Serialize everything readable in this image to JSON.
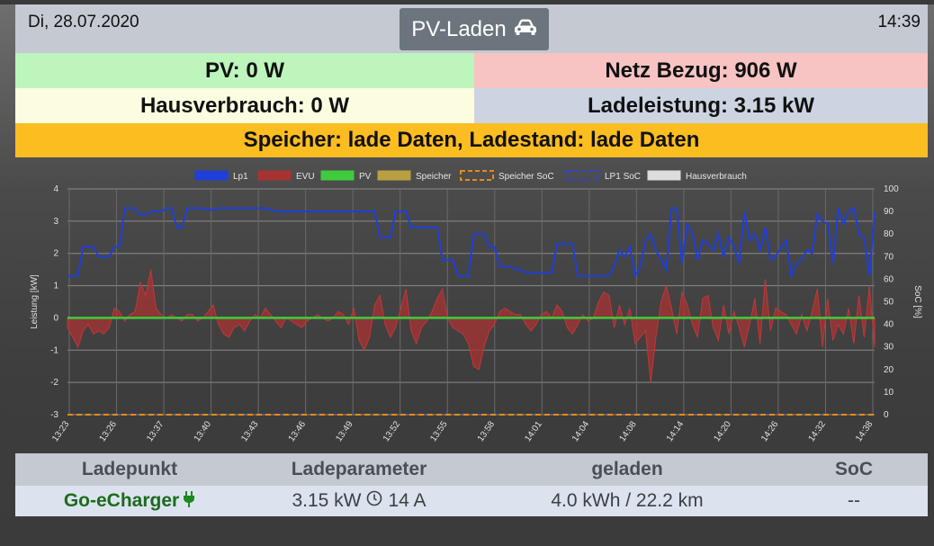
{
  "header": {
    "date": "Di, 28.07.2020",
    "time": "14:39",
    "mode_label": "PV-Laden",
    "mode_icon": "car-icon"
  },
  "status": {
    "pv": "PV: 0 W",
    "netz": "Netz Bezug: 906 W",
    "hausverbrauch": "Hausverbrauch: 0 W",
    "ladeleistung": "Ladeleistung: 3.15 kW",
    "speicher": "Speicher: lade Daten, Ladestand: lade Daten"
  },
  "colors": {
    "pv_bg": "#bdf5bd",
    "netz_bg": "#f7c3c3",
    "haus_bg": "#fcfce0",
    "ladel_bg": "#cdd4e1",
    "speicher_bg": "#fcbd20",
    "lp1": "#1f3fd8",
    "evu": "#a83232",
    "pv": "#3ecc3e",
    "speicher": "#b8a040",
    "speicher_soc": "#e88a1a",
    "lp1_soc": "#3344cc",
    "hausverbrauch": "#dddddd"
  },
  "chart_data": {
    "type": "line",
    "ylabel": "Leistung [kW]",
    "y2label": "SoC [%]",
    "ylim": [
      -3,
      4
    ],
    "y2lim": [
      0,
      100
    ],
    "yticks": [
      "4",
      "3",
      "2",
      "1",
      "0",
      "-1",
      "-2",
      "-3"
    ],
    "y2ticks": [
      "100",
      "90",
      "80",
      "70",
      "60",
      "50",
      "40",
      "30",
      "20",
      "10",
      "0"
    ],
    "x_tick_labels": [
      "13:23",
      "13:26",
      "13:37",
      "13:40",
      "13:43",
      "13:46",
      "13:49",
      "13:52",
      "13:55",
      "13:58",
      "14:01",
      "14:04",
      "14:08",
      "14:14",
      "14:20",
      "14:26",
      "14:32",
      "14:38"
    ],
    "grid": true,
    "legend_position": "top",
    "legend": [
      {
        "name": "Lp1",
        "color": "#1f3fd8",
        "style": "fill"
      },
      {
        "name": "EVU",
        "color": "#a83232",
        "style": "fill"
      },
      {
        "name": "PV",
        "color": "#3ecc3e",
        "style": "fill"
      },
      {
        "name": "Speicher",
        "color": "#b8a040",
        "style": "fill"
      },
      {
        "name": "Speicher SoC",
        "color": "#e88a1a",
        "style": "dash"
      },
      {
        "name": "LP1 SoC",
        "color": "#3344cc",
        "style": "dash"
      },
      {
        "name": "Hausverbrauch",
        "color": "#dddddd",
        "style": "fill"
      }
    ],
    "series": [
      {
        "name": "Lp1",
        "values": [
          1.3,
          1.3,
          1.3,
          2.2,
          2.2,
          2.2,
          1.9,
          1.9,
          1.9,
          2.2,
          2.2,
          3.4,
          3.4,
          3.4,
          3.2,
          3.2,
          3.3,
          3.3,
          3.3,
          3.4,
          3.4,
          2.8,
          2.8,
          3.4,
          3.4,
          3.4,
          3.4,
          3.35,
          3.35,
          3.4,
          3.4,
          3.4,
          3.4,
          3.4,
          3.4,
          3.4,
          3.4,
          3.4,
          3.4,
          3.35,
          3.3,
          3.3,
          3.3,
          3.3,
          3.3,
          3.3,
          3.3,
          3.3,
          3.3,
          3.3,
          3.3,
          3.3,
          3.3,
          3.3,
          3.3,
          3.3,
          3.3,
          3.3,
          3.3,
          3.3,
          2.5,
          2.5,
          2.5,
          3.3,
          3.3,
          3.3,
          2.8,
          2.8,
          2.8,
          2.8,
          2.8,
          2.8,
          1.8,
          1.8,
          1.8,
          1.3,
          1.3,
          1.3,
          2.6,
          2.6,
          2.6,
          2.2,
          2.2,
          1.6,
          1.6,
          1.6,
          1.5,
          1.5,
          1.4,
          1.4,
          1.4,
          1.4,
          1.4,
          1.4,
          2.3,
          2.3,
          2.3,
          2.3,
          1.3,
          1.3,
          1.3,
          1.3,
          1.3,
          1.3,
          1.3,
          1.6,
          2.1,
          1.9,
          2.2,
          1.3,
          1.6,
          2.4,
          2.6,
          2.1,
          1.8,
          1.5,
          3.4,
          3.4,
          1.7,
          2.9,
          2.6,
          1.8,
          2.4,
          2.3,
          2.1,
          2.6,
          1.9,
          2.5,
          2.2,
          1.7,
          3.3,
          2.4,
          2.6,
          2.1,
          2.8,
          1.8,
          1.9,
          2.2,
          2.4,
          1.3,
          1.7,
          1.8,
          2.1,
          2.0,
          3.2,
          3.0,
          2.9,
          1.7,
          3.4,
          2.9,
          3.3,
          3.4,
          2.6,
          2.5,
          1.3,
          3.3
        ]
      },
      {
        "name": "EVU",
        "values": [
          -0.3,
          -0.6,
          -0.9,
          -0.4,
          -0.2,
          -0.5,
          -0.4,
          -0.5,
          -0.3,
          0.3,
          0.2,
          -0.1,
          0.1,
          0.2,
          1.1,
          0.7,
          1.5,
          0.3,
          0.1,
          0.0,
          0.1,
          0.0,
          -0.1,
          0.1,
          0.1,
          -0.1,
          0.0,
          0.2,
          0.4,
          -0.2,
          -0.5,
          -0.6,
          -0.3,
          -0.2,
          -0.4,
          -0.1,
          0.1,
          0.0,
          0.3,
          0.1,
          -0.1,
          -0.3,
          0.0,
          -0.1,
          -0.2,
          -0.3,
          -0.1,
          0.0,
          0.1,
          0.0,
          -0.1,
          0.0,
          0.2,
          0.1,
          -0.2,
          0.3,
          -0.7,
          -1.0,
          -0.6,
          0.4,
          0.7,
          -0.2,
          -0.6,
          -0.3,
          0.3,
          0.9,
          -0.4,
          -0.8,
          -0.3,
          -0.1,
          0.2,
          0.6,
          0.9,
          0.0,
          -0.3,
          -0.4,
          -0.5,
          -0.8,
          -1.5,
          -1.6,
          -0.9,
          -0.4,
          -0.2,
          0.2,
          0.3,
          0.2,
          0.1,
          0.1,
          -0.2,
          -0.4,
          -0.2,
          0.1,
          0.2,
          0.0,
          0.4,
          0.2,
          -0.3,
          -0.5,
          -0.2,
          0.1,
          -0.1,
          0.0,
          0.5,
          0.8,
          0.7,
          -0.3,
          0.4,
          -0.2,
          0.3,
          -0.8,
          -0.6,
          -0.4,
          -2.0,
          -0.6,
          0.5,
          1.0,
          0.3,
          -0.5,
          0.8,
          0.4,
          -0.2,
          -0.6,
          0.6,
          0.7,
          -0.3,
          -0.7,
          0.4,
          -0.5,
          0.2,
          -0.3,
          -0.9,
          -0.2,
          0.6,
          -0.8,
          1.2,
          -0.4,
          0.3,
          0.2,
          0.1,
          -0.2,
          -0.5,
          0.1,
          -0.4,
          0.2,
          0.9,
          -0.9,
          0.6,
          -0.7,
          -0.2,
          -0.5,
          0.3,
          -0.8,
          0.7,
          -0.6,
          1.0,
          -0.9
        ]
      },
      {
        "name": "PV",
        "values": [
          0,
          0,
          0,
          0,
          0,
          0,
          0,
          0,
          0,
          0
        ]
      },
      {
        "name": "Speicher SoC",
        "values": [
          0,
          0,
          0,
          0,
          0,
          0,
          0,
          0,
          0,
          0
        ]
      }
    ]
  },
  "table": {
    "headers": [
      "Ladepunkt",
      "Ladeparameter",
      "geladen",
      "SoC"
    ],
    "row": {
      "ladepunkt": "Go-eCharger",
      "power": "3.15 kW",
      "current": "14 A",
      "geladen": "4.0 kWh / 22.2 km",
      "soc": "--"
    }
  }
}
